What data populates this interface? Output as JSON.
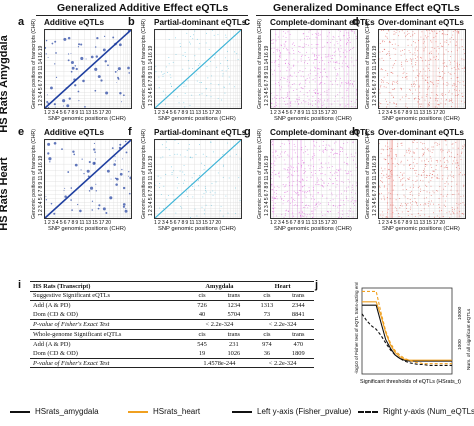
{
  "headers": {
    "additive": "Generalized Additive Effect eQTLs",
    "dominance": "Generalized Dominance Effect eQTLs"
  },
  "row_labels": [
    "HS Rats Amygdala",
    "HS Rats Heart"
  ],
  "panels": [
    {
      "letter": "a",
      "title": "Additive eQTLs",
      "color": "#1f3fa0",
      "style": "diag-strong"
    },
    {
      "letter": "b",
      "title": "Partial-dominant eQTLs",
      "color": "#3bb3d6",
      "style": "diag"
    },
    {
      "letter": "c",
      "title": "Complete-dominant eQTLs",
      "color": "#d23fd0",
      "style": "scatter"
    },
    {
      "letter": "d",
      "title": "Over-dominant eQTLs",
      "color": "#d9342b",
      "style": "scatter"
    },
    {
      "letter": "e",
      "title": "Additive eQTLs",
      "color": "#1f3fa0",
      "style": "diag-strong"
    },
    {
      "letter": "f",
      "title": "Partial-dominant eQTLs",
      "color": "#3bb3d6",
      "style": "diag"
    },
    {
      "letter": "g",
      "title": "Complete-dominant eQTLs",
      "color": "#d23fd0",
      "style": "scatter"
    },
    {
      "letter": "h",
      "title": "Over-dominant eQTLs",
      "color": "#d9342b",
      "style": "scatter"
    }
  ],
  "axis": {
    "x_ticks": "1  2  3  4  5  6  7  8  9  11  13  15  17  20",
    "x_label": "SNP genomic positions (CHR)",
    "y_ticks": "1 2 3 4 5 6 7 8 9 11 14 16 19",
    "y_label": "Genomic positions of transcripts (CHR)"
  },
  "table": {
    "letter": "i",
    "header": [
      "HS Rats (Transcript)",
      "Amygdala",
      "Heart"
    ],
    "sub": [
      "cis",
      "trans",
      "cis",
      "trans"
    ],
    "sections": [
      {
        "title": "Suggestive Significant eQTLs",
        "rows": [
          [
            "Add (A & PD)",
            "726",
            "1234",
            "1313",
            "2344"
          ],
          [
            "Dom (CD & OD)",
            "40",
            "5704",
            "73",
            "8841"
          ]
        ],
        "pvalue_label": "P-value of Fisher's Exact Test",
        "pvalues": [
          "< 2.2e-324",
          "< 2.2e-324"
        ]
      },
      {
        "title": "Whole-genome Significant eQTLs",
        "rows": [
          [
            "Add (A & PD)",
            "545",
            "231",
            "974",
            "470"
          ],
          [
            "Dom (CD & OD)",
            "19",
            "1026",
            "36",
            "1809"
          ]
        ],
        "pvalue_label": "P-value of Fisher's Exact Test",
        "pvalues": [
          "1.4578e-244",
          "< 2.2e-324"
        ]
      }
    ]
  },
  "chart_data": {
    "type": "line",
    "letter": "j",
    "xlabel": "Significant thresholds of eQTLs (HSrats_t)",
    "ylabel_left": "-log10 of Fisher test of eQTL trans-acting enrichment",
    "ylabel_right": "Num. of all significant eQTLs",
    "y_right_ticks": [
      "10000",
      "1000"
    ],
    "x": [
      1,
      2,
      3,
      4,
      5,
      6,
      7,
      8,
      9,
      10,
      11,
      12,
      13,
      14,
      15,
      16,
      17,
      18,
      19,
      20
    ],
    "ylim": [
      0,
      100
    ],
    "series": [
      {
        "name": "HSrats_amygdala",
        "axis": "left",
        "style": "solid",
        "color": "#111111",
        "values": [
          80,
          80,
          80,
          80,
          60,
          40,
          30,
          22,
          18,
          16,
          15,
          15,
          15,
          15,
          15,
          15,
          15,
          15,
          15,
          15
        ]
      },
      {
        "name": "HSrats_heart",
        "axis": "left",
        "style": "solid",
        "color": "#f0a020",
        "values": [
          84,
          84,
          84,
          84,
          68,
          48,
          34,
          25,
          20,
          17,
          16,
          16,
          16,
          16,
          16,
          16,
          16,
          16,
          16,
          16
        ]
      },
      {
        "name": "HSrats_amygdala",
        "axis": "right",
        "style": "dashed",
        "color": "#111111",
        "values": [
          70,
          62,
          56,
          52,
          45,
          36,
          28,
          22,
          18,
          15,
          13,
          12,
          11,
          11,
          10,
          10,
          10,
          10,
          10,
          10
        ]
      },
      {
        "name": "HSrats_heart",
        "axis": "right",
        "style": "dashed",
        "color": "#f0a020",
        "values": [
          96,
          96,
          96,
          96,
          72,
          50,
          36,
          27,
          22,
          18,
          16,
          14,
          13,
          12,
          12,
          12,
          12,
          12,
          12,
          12
        ]
      }
    ]
  },
  "legend": [
    {
      "label": "HSrats_amygdala",
      "color": "#111111",
      "style": "solid"
    },
    {
      "label": "HSrats_heart",
      "color": "#f0a020",
      "style": "solid"
    },
    {
      "label": "Left y-axis (Fisher_pvalue)",
      "color": "#111111",
      "style": "solid"
    },
    {
      "label": "Right y-axis (Num_eQTLs)",
      "color": "#111111",
      "style": "dashed"
    }
  ]
}
